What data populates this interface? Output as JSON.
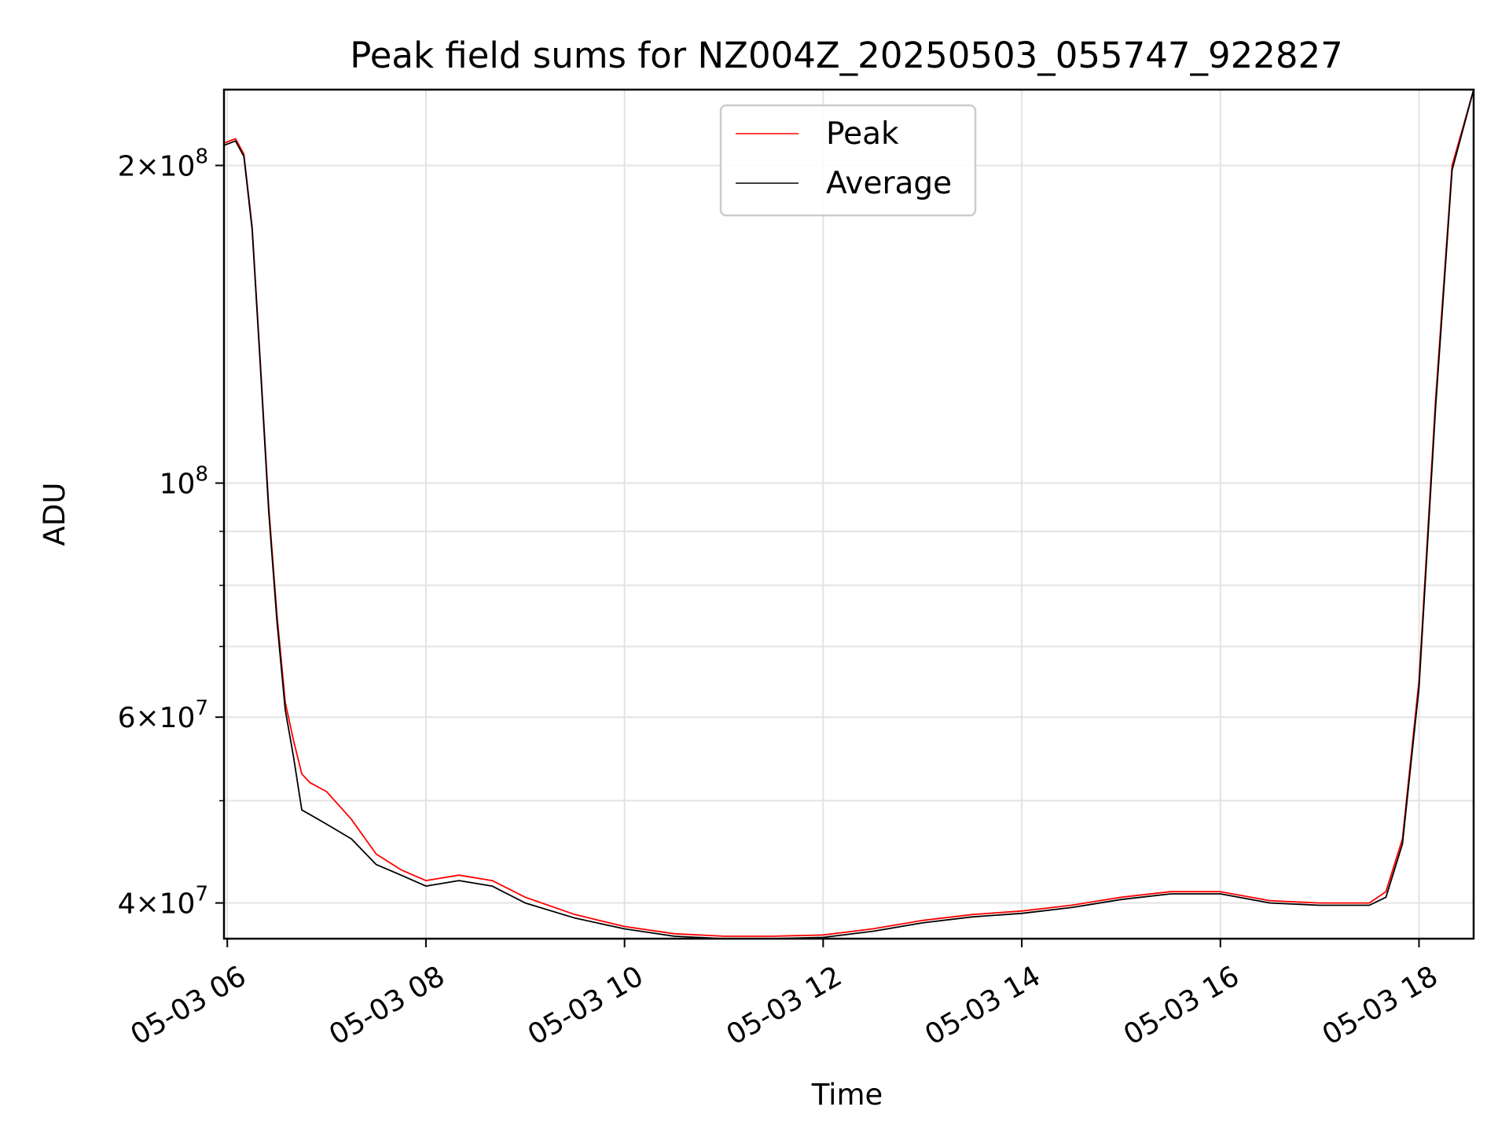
{
  "chart_data": {
    "type": "line",
    "title": "Peak field sums for NZ004Z_20250503_055747_922827",
    "xlabel": "Time",
    "ylabel": "ADU",
    "yscale": "log",
    "grid": true,
    "legend_position": "upper center",
    "xlim": [
      "05-03 05:58",
      "05-03 18:33"
    ],
    "ylim": [
      37000000,
      236000000
    ],
    "x_ticks": [
      {
        "value": "05-03 06:00",
        "label": "05-03 06"
      },
      {
        "value": "05-03 08:00",
        "label": "05-03 08"
      },
      {
        "value": "05-03 10:00",
        "label": "05-03 10"
      },
      {
        "value": "05-03 12:00",
        "label": "05-03 12"
      },
      {
        "value": "05-03 14:00",
        "label": "05-03 14"
      },
      {
        "value": "05-03 16:00",
        "label": "05-03 16"
      },
      {
        "value": "05-03 18:00",
        "label": "05-03 18"
      }
    ],
    "y_major_ticks": [
      {
        "value": 40000000,
        "mantissa": "4",
        "exponent": "7"
      },
      {
        "value": 60000000,
        "mantissa": "6",
        "exponent": "7"
      },
      {
        "value": 100000000,
        "mantissa": "",
        "exponent": "8"
      },
      {
        "value": 200000000,
        "mantissa": "2",
        "exponent": "8"
      }
    ],
    "y_minor_ticks": [
      50000000,
      70000000,
      80000000,
      90000000
    ],
    "x": [
      "05-03 05:58",
      "05-03 06:05",
      "05-03 06:10",
      "05-03 06:15",
      "05-03 06:20",
      "05-03 06:25",
      "05-03 06:30",
      "05-03 06:35",
      "05-03 06:40",
      "05-03 06:45",
      "05-03 06:50",
      "05-03 07:00",
      "05-03 07:15",
      "05-03 07:30",
      "05-03 07:45",
      "05-03 08:00",
      "05-03 08:20",
      "05-03 08:40",
      "05-03 09:00",
      "05-03 09:30",
      "05-03 10:00",
      "05-03 10:30",
      "05-03 11:00",
      "05-03 11:30",
      "05-03 12:00",
      "05-03 12:30",
      "05-03 13:00",
      "05-03 13:30",
      "05-03 14:00",
      "05-03 14:30",
      "05-03 15:00",
      "05-03 15:30",
      "05-03 16:00",
      "05-03 16:30",
      "05-03 17:00",
      "05-03 17:30",
      "05-03 17:40",
      "05-03 17:50",
      "05-03 18:00",
      "05-03 18:10",
      "05-03 18:20",
      "05-03 18:33"
    ],
    "series": [
      {
        "name": "Peak",
        "color": "#ff0000",
        "values": [
          210000000,
          212000000,
          205000000,
          175000000,
          130000000,
          95000000,
          75000000,
          62000000,
          57000000,
          53000000,
          52000000,
          51000000,
          48000000,
          44500000,
          43000000,
          42000000,
          42500000,
          42000000,
          40500000,
          39000000,
          38000000,
          37400000,
          37200000,
          37200000,
          37300000,
          37800000,
          38500000,
          39000000,
          39300000,
          39800000,
          40500000,
          41000000,
          41000000,
          40200000,
          40000000,
          40000000,
          41000000,
          46000000,
          65000000,
          120000000,
          200000000,
          236000000
        ]
      },
      {
        "name": "Average",
        "color": "#000000",
        "values": [
          209000000,
          211000000,
          204000000,
          174000000,
          129000000,
          94000000,
          74000000,
          61000000,
          55000000,
          49000000,
          48500000,
          47500000,
          46000000,
          43500000,
          42500000,
          41500000,
          42000000,
          41500000,
          40000000,
          38700000,
          37800000,
          37200000,
          37000000,
          37000000,
          37100000,
          37600000,
          38300000,
          38800000,
          39100000,
          39600000,
          40300000,
          40800000,
          40800000,
          40000000,
          39800000,
          39800000,
          40500000,
          45500000,
          64000000,
          118000000,
          198000000,
          236000000
        ]
      }
    ]
  }
}
